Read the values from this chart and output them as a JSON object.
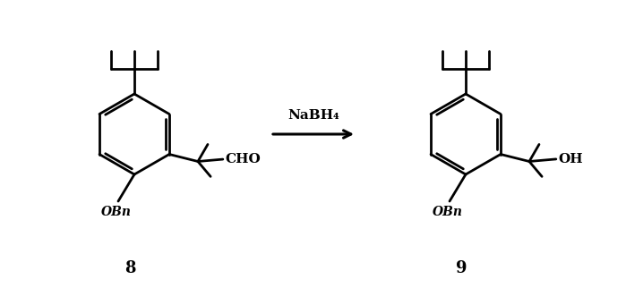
{
  "background_color": "#ffffff",
  "line_color": "#000000",
  "line_width": 2.0,
  "arrow_label": "NaBH₄",
  "compound_left_label": "8",
  "compound_right_label": "9",
  "left_group": "CHO",
  "right_group": "OH",
  "obn_label": "OBn",
  "figsize": [
    6.99,
    3.22
  ],
  "dpi": 100
}
